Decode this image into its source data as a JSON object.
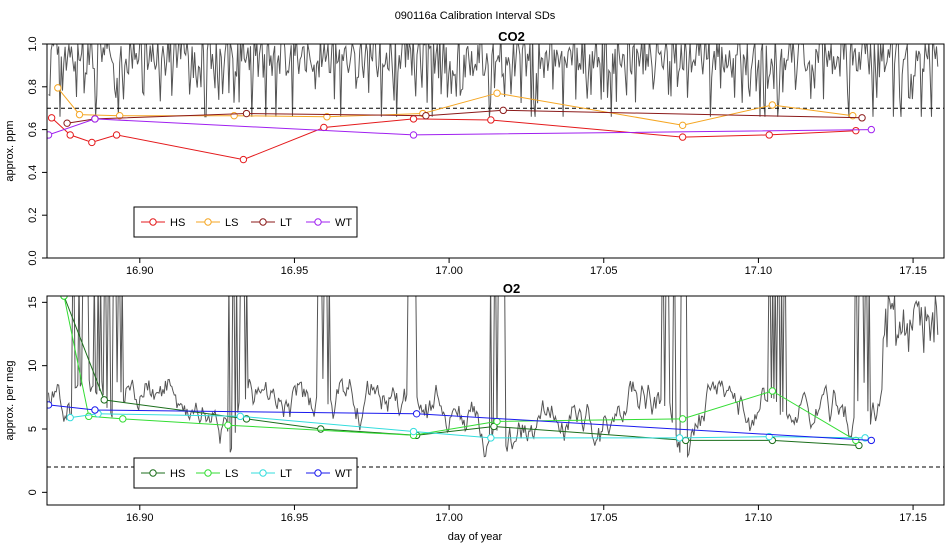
{
  "page_title": "090116a   Calibration Interval SDs",
  "xlabel": "day of year",
  "colors": {
    "HS_co2": "#e41a1c",
    "LS_co2": "#f5a623",
    "LT_co2": "#8b1a1a",
    "WT_co2": "#a020f0",
    "HS_o2": "#1b6e1b",
    "LS_o2": "#33dd33",
    "LT_o2": "#33dddd",
    "WT_o2": "#1a1aee",
    "trace": "#555555"
  },
  "chart_data": [
    {
      "type": "line",
      "title": "CO2",
      "ylabel": "approx. ppm",
      "xlim": [
        16.87,
        17.16
      ],
      "ylim": [
        0.0,
        1.0
      ],
      "yticks": [
        "0.0",
        "0.2",
        "0.4",
        "0.6",
        "0.8",
        "1.0"
      ],
      "xticks": [
        "16.90",
        "16.95",
        "17.00",
        "17.05",
        "17.10",
        "17.15"
      ],
      "threshold": 0.7,
      "legend": [
        "HS",
        "LS",
        "LT",
        "WT"
      ],
      "series": [
        {
          "name": "HS",
          "x": [
            16.8715,
            16.8775,
            16.8845,
            16.8925,
            16.9335,
            16.9595,
            16.9885,
            17.0135,
            17.0755,
            17.1035,
            17.1315
          ],
          "values": [
            0.655,
            0.575,
            0.54,
            0.575,
            0.46,
            0.61,
            0.65,
            0.645,
            0.565,
            0.575,
            0.595
          ]
        },
        {
          "name": "LS",
          "x": [
            16.8735,
            16.8805,
            16.8935,
            16.9305,
            16.9605,
            16.9915,
            17.0155,
            17.0755,
            17.1045,
            17.1305
          ],
          "values": [
            0.795,
            0.67,
            0.665,
            0.665,
            0.66,
            0.675,
            0.77,
            0.62,
            0.715,
            0.665
          ]
        },
        {
          "name": "LT",
          "x": [
            16.8765,
            16.8855,
            16.9345,
            16.9925,
            17.0175,
            17.1335
          ],
          "values": [
            0.63,
            0.65,
            0.675,
            0.665,
            0.69,
            0.655
          ]
        },
        {
          "name": "WT",
          "x": [
            16.8705,
            16.8855,
            16.9885,
            17.1365
          ],
          "values": [
            0.575,
            0.65,
            0.575,
            0.6
          ]
        }
      ]
    },
    {
      "type": "line",
      "title": "O2",
      "ylabel": "approx. per meg",
      "xlim": [
        16.87,
        17.16
      ],
      "ylim": [
        -1.0,
        15.5
      ],
      "yticks": [
        "0",
        "5",
        "10",
        "15"
      ],
      "yticks_values": [
        0,
        5,
        10,
        15
      ],
      "xticks": [
        "16.90",
        "16.95",
        "17.00",
        "17.05",
        "17.10",
        "17.15"
      ],
      "threshold": 2.0,
      "legend": [
        "HS",
        "LS",
        "LT",
        "WT"
      ],
      "series": [
        {
          "name": "HS",
          "x": [
            16.8755,
            16.8885,
            16.9345,
            16.9585,
            16.9895,
            17.0145,
            17.0765,
            17.1045,
            17.1325
          ],
          "values": [
            15.5,
            7.3,
            5.8,
            5.0,
            4.5,
            5.2,
            4.1,
            4.1,
            3.7
          ]
        },
        {
          "name": "LS",
          "x": [
            16.8755,
            16.8835,
            16.8945,
            16.9285,
            16.9885,
            17.0155,
            17.0755,
            17.1045,
            17.1315
          ],
          "values": [
            15.5,
            6.0,
            5.8,
            5.3,
            4.5,
            5.6,
            5.8,
            8.0,
            4.1
          ]
        },
        {
          "name": "LT",
          "x": [
            16.8775,
            16.8865,
            16.9325,
            16.9885,
            17.0135,
            17.0745,
            17.1035,
            17.1345
          ],
          "values": [
            5.9,
            6.2,
            6.0,
            4.8,
            4.3,
            4.3,
            4.4,
            4.3
          ]
        },
        {
          "name": "WT",
          "x": [
            16.8705,
            16.8855,
            16.9895,
            17.1365
          ],
          "values": [
            6.9,
            6.5,
            6.2,
            4.1
          ]
        }
      ]
    }
  ]
}
